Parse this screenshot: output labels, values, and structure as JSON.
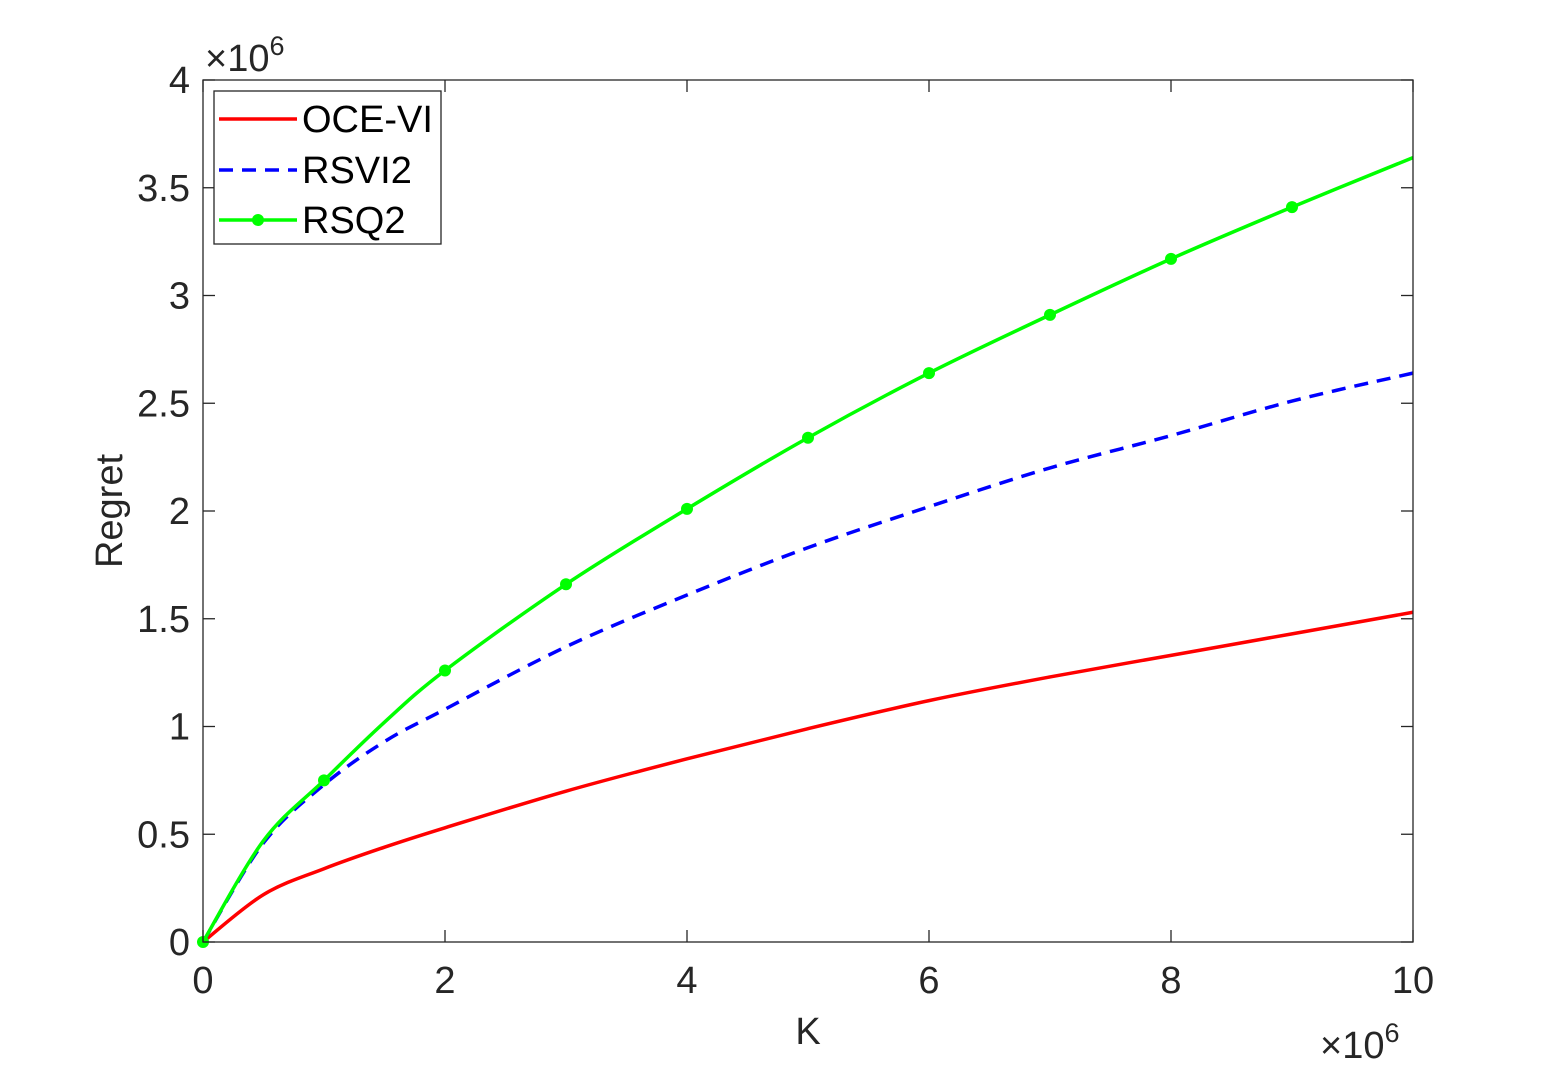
{
  "chart_data": {
    "type": "line",
    "xlabel": "K",
    "ylabel": "Regret",
    "x_exponent_label": "×10",
    "x_exponent_power": "6",
    "y_exponent_label": "×10",
    "y_exponent_power": "6",
    "xlim": [
      0,
      10
    ],
    "ylim": [
      0,
      4
    ],
    "x_ticks": [
      0,
      2,
      4,
      6,
      8,
      10
    ],
    "x_tick_labels": [
      "0",
      "2",
      "4",
      "6",
      "8",
      "10"
    ],
    "y_ticks": [
      0,
      0.5,
      1,
      1.5,
      2,
      2.5,
      3,
      3.5,
      4
    ],
    "y_tick_labels": [
      "0",
      "0.5",
      "1",
      "1.5",
      "2",
      "2.5",
      "3",
      "3.5",
      "4"
    ],
    "grid": false,
    "legend_position": "top-left",
    "series": [
      {
        "name": "OCE-VI",
        "color": "#ff0000",
        "style": "solid",
        "markers": false,
        "x": [
          0,
          0.5,
          1,
          1.5,
          2,
          3,
          4,
          5,
          6,
          7,
          8,
          9,
          10
        ],
        "values": [
          0,
          0.22,
          0.34,
          0.44,
          0.53,
          0.7,
          0.85,
          0.99,
          1.12,
          1.23,
          1.33,
          1.43,
          1.53
        ]
      },
      {
        "name": "RSVI2",
        "color": "#0000ff",
        "style": "dashed",
        "markers": false,
        "x": [
          0,
          0.5,
          1,
          1.5,
          2,
          3,
          4,
          5,
          6,
          7,
          8,
          9,
          10
        ],
        "values": [
          0,
          0.46,
          0.73,
          0.93,
          1.08,
          1.37,
          1.61,
          1.83,
          2.02,
          2.2,
          2.35,
          2.51,
          2.64
        ]
      },
      {
        "name": "RSQ2",
        "color": "#00ff00",
        "style": "solid",
        "markers": true,
        "x": [
          0,
          0.5,
          1,
          1.5,
          2,
          3,
          4,
          5,
          6,
          7,
          8,
          9,
          10
        ],
        "values": [
          0,
          0.47,
          0.75,
          1.02,
          1.26,
          1.66,
          2.01,
          2.34,
          2.64,
          2.91,
          3.17,
          3.41,
          3.64
        ],
        "marker_x": [
          0,
          1,
          2,
          3,
          4,
          5,
          6,
          7,
          8,
          9
        ],
        "marker_values": [
          0,
          0.75,
          1.26,
          1.66,
          2.01,
          2.34,
          2.64,
          2.91,
          3.17,
          3.41
        ]
      }
    ]
  }
}
